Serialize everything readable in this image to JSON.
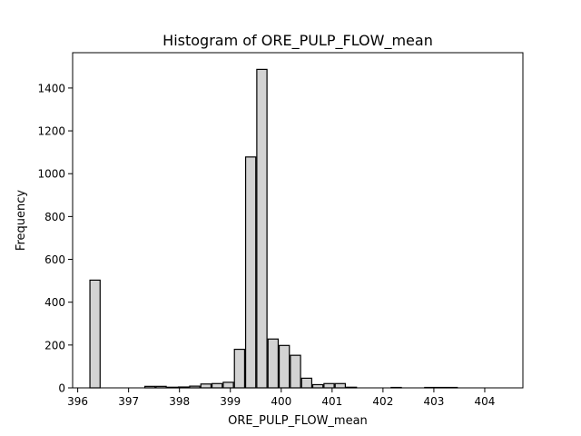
{
  "chart_data": {
    "type": "bar",
    "title": "Histogram of ORE_PULP_FLOW_mean",
    "xlabel": "ORE_PULP_FLOW_mean",
    "ylabel": "Frequency",
    "xlim": [
      395.9,
      404.75
    ],
    "ylim": [
      0,
      1565
    ],
    "x_ticks": [
      396,
      397,
      398,
      399,
      400,
      401,
      402,
      403,
      404
    ],
    "y_ticks": [
      0,
      200,
      400,
      600,
      800,
      1000,
      1200,
      1400
    ],
    "bar_color": "#d3d3d3",
    "edge_color": "#000000",
    "bins": [
      {
        "x0": 396.24,
        "x1": 396.44,
        "count": 503
      },
      {
        "x0": 396.44,
        "x1": 396.64,
        "count": 0
      },
      {
        "x0": 396.66,
        "x1": 396.86,
        "count": 0
      },
      {
        "x0": 396.88,
        "x1": 397.08,
        "count": 0
      },
      {
        "x0": 397.1,
        "x1": 397.3,
        "count": 0
      },
      {
        "x0": 397.32,
        "x1": 397.52,
        "count": 7
      },
      {
        "x0": 397.54,
        "x1": 397.74,
        "count": 7
      },
      {
        "x0": 397.76,
        "x1": 397.96,
        "count": 3
      },
      {
        "x0": 397.98,
        "x1": 398.18,
        "count": 4
      },
      {
        "x0": 398.2,
        "x1": 398.4,
        "count": 8
      },
      {
        "x0": 398.42,
        "x1": 398.62,
        "count": 18
      },
      {
        "x0": 398.64,
        "x1": 398.84,
        "count": 20
      },
      {
        "x0": 398.86,
        "x1": 399.06,
        "count": 26
      },
      {
        "x0": 399.08,
        "x1": 399.28,
        "count": 180
      },
      {
        "x0": 399.3,
        "x1": 399.5,
        "count": 1078
      },
      {
        "x0": 399.52,
        "x1": 399.72,
        "count": 1487
      },
      {
        "x0": 399.74,
        "x1": 399.94,
        "count": 228
      },
      {
        "x0": 399.96,
        "x1": 400.16,
        "count": 198
      },
      {
        "x0": 400.18,
        "x1": 400.38,
        "count": 152
      },
      {
        "x0": 400.4,
        "x1": 400.6,
        "count": 45
      },
      {
        "x0": 400.62,
        "x1": 400.82,
        "count": 15
      },
      {
        "x0": 400.84,
        "x1": 401.04,
        "count": 20
      },
      {
        "x0": 401.06,
        "x1": 401.26,
        "count": 20
      },
      {
        "x0": 401.28,
        "x1": 401.48,
        "count": 3
      },
      {
        "x0": 401.5,
        "x1": 401.7,
        "count": 0
      },
      {
        "x0": 401.72,
        "x1": 401.92,
        "count": 0
      },
      {
        "x0": 401.94,
        "x1": 402.14,
        "count": 0
      },
      {
        "x0": 402.16,
        "x1": 402.36,
        "count": 2
      },
      {
        "x0": 402.38,
        "x1": 402.58,
        "count": 0
      },
      {
        "x0": 402.6,
        "x1": 402.8,
        "count": 0
      },
      {
        "x0": 402.82,
        "x1": 403.02,
        "count": 2
      },
      {
        "x0": 403.04,
        "x1": 403.24,
        "count": 2
      },
      {
        "x0": 403.26,
        "x1": 403.46,
        "count": 2
      }
    ]
  }
}
